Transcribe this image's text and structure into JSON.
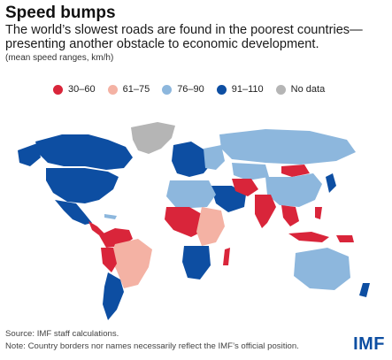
{
  "title": "Speed bumps",
  "subtitle": "The world’s slowest roads are found in the poorest countries—presenting another obstacle to economic development.",
  "note": "(mean speed ranges, km/h)",
  "legend": [
    {
      "label": "30–60",
      "color": "#d9253a"
    },
    {
      "label": "61–75",
      "color": "#f4b2a4"
    },
    {
      "label": "76–90",
      "color": "#8db7dd"
    },
    {
      "label": "91–110",
      "color": "#0d4ea2"
    },
    {
      "label": "No data",
      "color": "#b5b5b5"
    }
  ],
  "source": "Source: IMF staff calculations.",
  "footnote": "Note: Country borders nor names necessarily reflect the IMF’s official position.",
  "logo": "IMF"
}
